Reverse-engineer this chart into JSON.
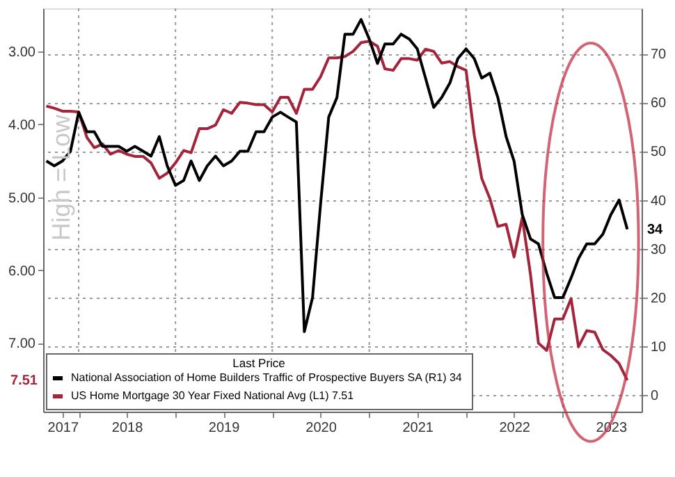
{
  "chart_data": {
    "type": "line",
    "legend_title": "Last Price",
    "annotations": [
      "High = Low",
      "7.51"
    ],
    "x": [
      "2017-09-01",
      "2017-10-01",
      "2017-11-01",
      "2017-12-01",
      "2018-01-01",
      "2018-02-01",
      "2018-03-01",
      "2018-04-01",
      "2018-05-01",
      "2018-06-01",
      "2018-07-01",
      "2018-08-01",
      "2018-09-01",
      "2018-10-01",
      "2018-11-01",
      "2018-12-01",
      "2019-01-01",
      "2019-02-01",
      "2019-03-01",
      "2019-04-01",
      "2019-05-01",
      "2019-06-01",
      "2019-07-01",
      "2019-08-01",
      "2019-09-01",
      "2019-10-01",
      "2019-11-01",
      "2019-12-01",
      "2020-01-01",
      "2020-02-01",
      "2020-03-01",
      "2020-04-01",
      "2020-05-01",
      "2020-06-01",
      "2020-07-01",
      "2020-08-01",
      "2020-09-01",
      "2020-10-01",
      "2020-11-01",
      "2020-12-01",
      "2021-01-01",
      "2021-02-01",
      "2021-03-01",
      "2021-04-01",
      "2021-05-01",
      "2021-06-01",
      "2021-07-01",
      "2021-08-01",
      "2021-09-01",
      "2021-10-01",
      "2021-11-01",
      "2021-12-01",
      "2022-01-01",
      "2022-02-01",
      "2022-03-01",
      "2022-04-01",
      "2022-05-01",
      "2022-06-01",
      "2022-07-01",
      "2022-08-01",
      "2022-09-01",
      "2022-10-01",
      "2022-11-01",
      "2022-12-01",
      "2023-01-01",
      "2023-02-01",
      "2023-03-01",
      "2023-04-01",
      "2023-05-01",
      "2023-06-01",
      "2023-07-01",
      "2023-08-01",
      "2023-09-01"
    ],
    "series": [
      {
        "name": "National Association of Home Builders Traffic of Prospective Buyers SA  (R1) 34",
        "color": "#000000",
        "axis": "y2",
        "values": [
          48,
          47,
          48,
          50,
          58,
          54,
          54,
          51,
          51,
          51,
          50,
          51,
          50,
          49,
          53,
          47,
          43,
          44,
          48,
          44,
          47,
          49,
          47,
          48,
          50,
          50,
          54,
          54,
          57,
          58,
          57,
          56,
          13,
          20,
          39,
          57,
          61,
          74,
          74,
          77,
          73,
          68,
          72,
          72,
          74,
          73,
          71,
          65,
          59,
          61,
          64,
          69,
          71,
          69,
          65,
          66,
          61,
          53,
          48,
          37,
          32,
          31,
          25,
          20,
          20,
          24,
          28,
          31,
          31,
          33,
          37,
          40,
          34
        ],
        "value_labels": [
          null,
          null,
          null,
          null,
          null,
          null,
          null,
          null,
          null,
          null,
          null,
          null,
          null,
          null,
          null,
          null,
          null,
          null,
          null,
          null,
          null,
          null,
          null,
          null,
          null,
          null,
          null,
          null,
          null,
          null,
          null,
          null,
          null,
          null,
          null,
          null,
          null,
          null,
          null,
          null,
          null,
          null,
          null,
          null,
          null,
          null,
          null,
          null,
          null,
          null,
          null,
          null,
          null,
          null,
          null,
          null,
          null,
          null,
          null,
          null,
          null,
          null,
          null,
          null,
          null,
          null,
          null,
          null,
          null,
          null,
          null,
          null,
          "34"
        ]
      },
      {
        "name": "US Home Mortgage 30 Year Fixed National Avg  (L1) 7.51",
        "color": "#a3243b",
        "axis": "y",
        "values": [
          3.75,
          3.78,
          3.82,
          3.82,
          3.83,
          4.18,
          4.32,
          4.27,
          4.41,
          4.36,
          4.41,
          4.44,
          4.44,
          4.53,
          4.74,
          4.67,
          4.53,
          4.36,
          4.39,
          4.06,
          4.06,
          4.01,
          3.8,
          3.85,
          3.7,
          3.71,
          3.73,
          3.73,
          3.83,
          3.63,
          3.63,
          3.85,
          3.52,
          3.52,
          3.35,
          3.09,
          3.09,
          3.07,
          3.0,
          2.88,
          2.86,
          2.93,
          3.24,
          3.26,
          3.1,
          3.1,
          3.12,
          2.97,
          3.0,
          3.16,
          3.14,
          3.21,
          3.26,
          4.15,
          4.74,
          5.02,
          5.4,
          5.37,
          5.82,
          5.28,
          6.06,
          7.0,
          7.1,
          6.67,
          6.67,
          6.39,
          7.05,
          6.83,
          6.85,
          7.09,
          7.17,
          7.28,
          7.51
        ]
      }
    ],
    "xlim": [
      "2017-08-20",
      "2023-10-25"
    ],
    "xticks": [
      {
        "value": "2017-11-01",
        "label": "2017"
      },
      {
        "value": "2018-01-01",
        "label": null
      },
      {
        "value": "2018-07-01",
        "label": "2018"
      },
      {
        "value": "2019-01-01",
        "label": null
      },
      {
        "value": "2019-07-01",
        "label": "2019"
      },
      {
        "value": "2020-01-01",
        "label": null
      },
      {
        "value": "2020-07-01",
        "label": "2020"
      },
      {
        "value": "2021-01-01",
        "label": null
      },
      {
        "value": "2021-07-01",
        "label": "2021"
      },
      {
        "value": "2022-01-01",
        "label": null
      },
      {
        "value": "2022-07-01",
        "label": "2022"
      },
      {
        "value": "2023-01-01",
        "label": null
      },
      {
        "value": "2023-07-01",
        "label": "2023"
      }
    ],
    "ylim": [
      7.94,
      2.41
    ],
    "yticks": [
      {
        "value": 3,
        "label": "3.00"
      },
      {
        "value": 4,
        "label": "4.00"
      },
      {
        "value": 5,
        "label": "5.00"
      },
      {
        "value": 6,
        "label": "6.00"
      },
      {
        "value": 7,
        "label": "7.00"
      }
    ],
    "y2lim": [
      -3.4,
      79.3
    ],
    "y2ticks": [
      0,
      10,
      20,
      30,
      40,
      50,
      60,
      70
    ],
    "grid": true,
    "legend": "bottom left"
  }
}
